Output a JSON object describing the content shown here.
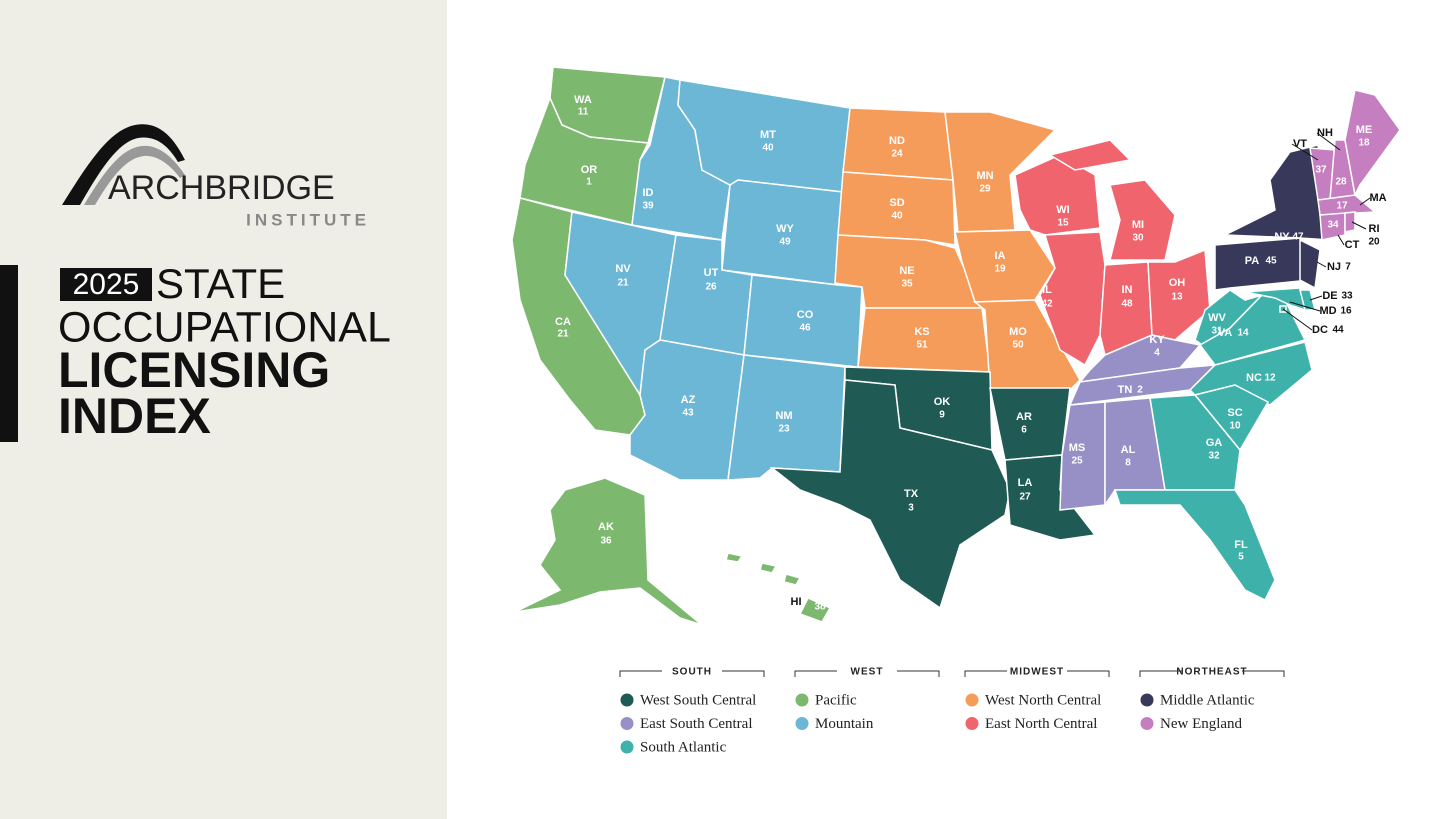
{
  "brand": {
    "name": "ARCHBRIDGE",
    "sub": "INSTITUTE"
  },
  "title": {
    "year": "2025",
    "line1": "STATE",
    "line2": "OCCUPATIONAL",
    "line3": "LICENSING",
    "line4": "INDEX"
  },
  "legend": [
    {
      "region": "SOUTH",
      "divisions": [
        {
          "name": "West South Central",
          "color": "#1f5a55"
        },
        {
          "name": "East South Central",
          "color": "#9690c7"
        },
        {
          "name": "South Atlantic",
          "color": "#3fb1ab"
        }
      ]
    },
    {
      "region": "WEST",
      "divisions": [
        {
          "name": "Pacific",
          "color": "#7db86f"
        },
        {
          "name": "Mountain",
          "color": "#6cb7d6"
        }
      ]
    },
    {
      "region": "MIDWEST",
      "divisions": [
        {
          "name": "West North Central",
          "color": "#f59c5a"
        },
        {
          "name": "East North Central",
          "color": "#ef646d"
        }
      ]
    },
    {
      "region": "NORTHEAST",
      "divisions": [
        {
          "name": "Middle Atlantic",
          "color": "#37385a"
        },
        {
          "name": "New England",
          "color": "#c57ec0"
        }
      ]
    }
  ],
  "states": [
    {
      "abbr": "WA",
      "rank": 11,
      "color": "#7db86f"
    },
    {
      "abbr": "OR",
      "rank": 1,
      "color": "#7db86f"
    },
    {
      "abbr": "CA",
      "rank": 21,
      "color": "#7db86f"
    },
    {
      "abbr": "AK",
      "rank": 36,
      "color": "#7db86f"
    },
    {
      "abbr": "HI",
      "rank": 38,
      "color": "#7db86f"
    },
    {
      "abbr": "ID",
      "rank": 39,
      "color": "#6cb7d6"
    },
    {
      "abbr": "NV",
      "rank": 21,
      "color": "#6cb7d6"
    },
    {
      "abbr": "MT",
      "rank": 40,
      "color": "#6cb7d6"
    },
    {
      "abbr": "WY",
      "rank": 49,
      "color": "#6cb7d6"
    },
    {
      "abbr": "UT",
      "rank": 26,
      "color": "#6cb7d6"
    },
    {
      "abbr": "CO",
      "rank": 46,
      "color": "#6cb7d6"
    },
    {
      "abbr": "AZ",
      "rank": 43,
      "color": "#6cb7d6"
    },
    {
      "abbr": "NM",
      "rank": 23,
      "color": "#6cb7d6"
    },
    {
      "abbr": "ND",
      "rank": 24,
      "color": "#f59c5a"
    },
    {
      "abbr": "SD",
      "rank": 40,
      "color": "#f59c5a"
    },
    {
      "abbr": "NE",
      "rank": 35,
      "color": "#f59c5a"
    },
    {
      "abbr": "KS",
      "rank": 51,
      "color": "#f59c5a"
    },
    {
      "abbr": "MN",
      "rank": 29,
      "color": "#f59c5a"
    },
    {
      "abbr": "IA",
      "rank": 19,
      "color": "#f59c5a"
    },
    {
      "abbr": "MO",
      "rank": 50,
      "color": "#f59c5a"
    },
    {
      "abbr": "WI",
      "rank": 15,
      "color": "#ef646d"
    },
    {
      "abbr": "IL",
      "rank": 42,
      "color": "#ef646d"
    },
    {
      "abbr": "MI",
      "rank": 30,
      "color": "#ef646d"
    },
    {
      "abbr": "IN",
      "rank": 48,
      "color": "#ef646d"
    },
    {
      "abbr": "OH",
      "rank": 13,
      "color": "#ef646d"
    },
    {
      "abbr": "OK",
      "rank": 9,
      "color": "#1f5a55"
    },
    {
      "abbr": "TX",
      "rank": 3,
      "color": "#1f5a55"
    },
    {
      "abbr": "AR",
      "rank": 6,
      "color": "#1f5a55"
    },
    {
      "abbr": "LA",
      "rank": 27,
      "color": "#1f5a55"
    },
    {
      "abbr": "KY",
      "rank": 4,
      "color": "#9690c7"
    },
    {
      "abbr": "TN",
      "rank": 2,
      "color": "#9690c7"
    },
    {
      "abbr": "MS",
      "rank": 25,
      "color": "#9690c7"
    },
    {
      "abbr": "AL",
      "rank": 8,
      "color": "#9690c7"
    },
    {
      "abbr": "WV",
      "rank": 31,
      "color": "#3fb1ab"
    },
    {
      "abbr": "VA",
      "rank": 14,
      "color": "#3fb1ab"
    },
    {
      "abbr": "NC",
      "rank": 12,
      "color": "#3fb1ab"
    },
    {
      "abbr": "SC",
      "rank": 10,
      "color": "#3fb1ab"
    },
    {
      "abbr": "GA",
      "rank": 32,
      "color": "#3fb1ab"
    },
    {
      "abbr": "FL",
      "rank": 5,
      "color": "#3fb1ab"
    },
    {
      "abbr": "MD",
      "rank": 16,
      "color": "#3fb1ab"
    },
    {
      "abbr": "DE",
      "rank": 33,
      "color": "#3fb1ab"
    },
    {
      "abbr": "DC",
      "rank": 44,
      "color": "#3fb1ab"
    },
    {
      "abbr": "NY",
      "rank": 47,
      "color": "#37385a"
    },
    {
      "abbr": "PA",
      "rank": 45,
      "color": "#37385a"
    },
    {
      "abbr": "NJ",
      "rank": 7,
      "color": "#37385a"
    },
    {
      "abbr": "VT",
      "rank": 37,
      "color": "#c57ec0"
    },
    {
      "abbr": "NH",
      "rank": 28,
      "color": "#c57ec0"
    },
    {
      "abbr": "ME",
      "rank": 18,
      "color": "#c57ec0"
    },
    {
      "abbr": "MA",
      "rank": 17,
      "color": "#c57ec0"
    },
    {
      "abbr": "CT",
      "rank": 34,
      "color": "#c57ec0"
    },
    {
      "abbr": "RI",
      "rank": 20,
      "color": "#c57ec0"
    }
  ]
}
